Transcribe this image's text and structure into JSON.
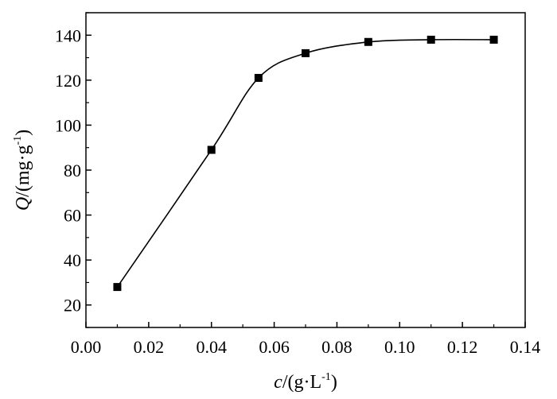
{
  "chart_data": {
    "type": "line",
    "xlabel": {
      "var": "c",
      "text": "/(g·L",
      "sup": "-1",
      "close": ")"
    },
    "ylabel": {
      "var": "Q",
      "text": "/(mg·g",
      "sup": "-1",
      "close": ")"
    },
    "xlim": [
      0.0,
      0.14
    ],
    "ylim": [
      10,
      150
    ],
    "xticks": [
      0.0,
      0.02,
      0.04,
      0.06,
      0.08,
      0.1,
      0.12,
      0.14
    ],
    "xtick_labels": [
      "0.00",
      "0.02",
      "0.04",
      "0.06",
      "0.08",
      "0.10",
      "0.12",
      "0.14"
    ],
    "yticks": [
      20,
      40,
      60,
      80,
      100,
      120,
      140
    ],
    "ytick_labels": [
      "20",
      "40",
      "60",
      "80",
      "100",
      "120",
      "140"
    ],
    "grid": false,
    "marker": "square",
    "line_color": "#000000",
    "marker_color": "#000000",
    "series": [
      {
        "x": [
          0.01,
          0.04,
          0.055,
          0.07,
          0.09,
          0.11,
          0.13
        ],
        "y": [
          28,
          89,
          121,
          132,
          137,
          138,
          138
        ]
      }
    ]
  }
}
